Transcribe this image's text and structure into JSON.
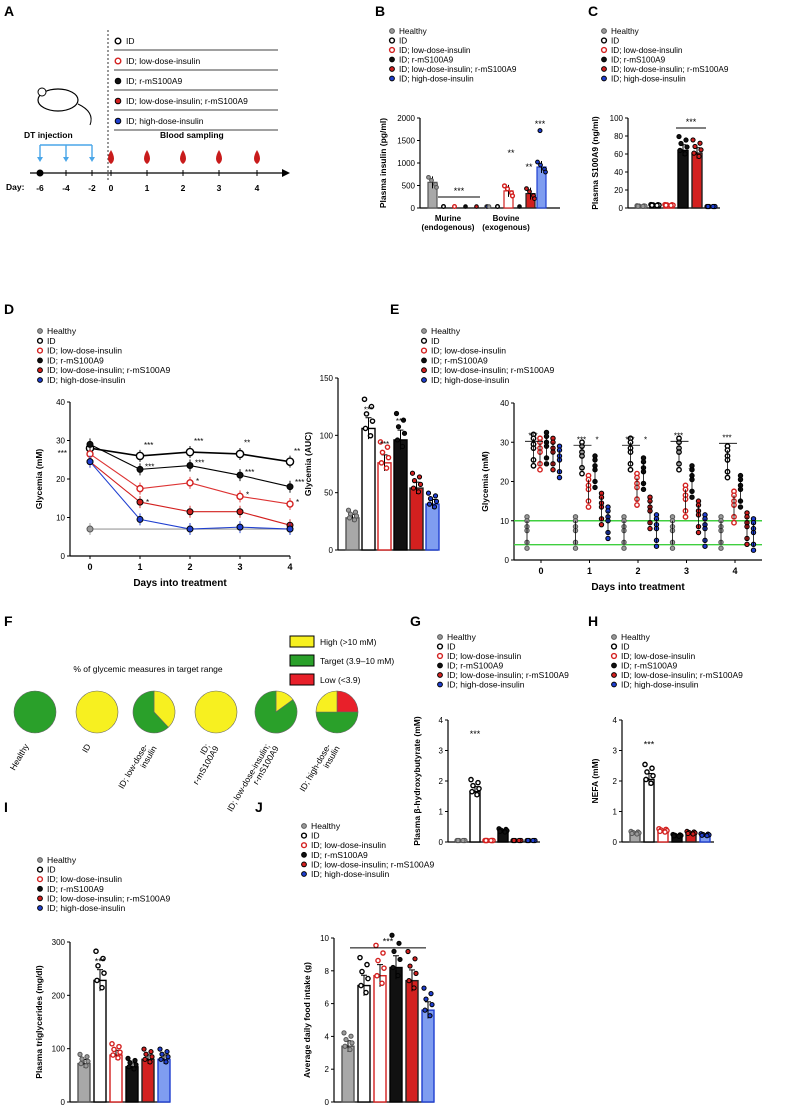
{
  "legend_groups": [
    "Healthy",
    "ID",
    "ID; low-dose-insulin",
    "ID; r-mS100A9",
    "ID; low-dose-insulin; r-mS100A9",
    "ID; high-dose-insulin"
  ],
  "colors": {
    "healthy": "#9a9a9a",
    "id": "#ffffff",
    "low": "#ffffff",
    "r": "#111111",
    "lowr": "#d3201f",
    "high": "#1f3fd0",
    "cyan": "#4aa6e8",
    "blood": "#c81b1b",
    "green_line": "#3fcf3f",
    "high_pie": "#f7f020",
    "target_pie": "#2aa02a",
    "low_pie": "#e8202a",
    "bar_low_fill": "#ffffff",
    "bar_high_fill": "#7f9df0"
  },
  "panel_letters": [
    "A",
    "B",
    "C",
    "D",
    "E",
    "F",
    "G",
    "H",
    "I",
    "J"
  ],
  "panelA": {
    "legend": [
      "ID",
      "ID; low-dose-insulin",
      "ID; r-mS100A9",
      "ID; low-dose-insulin; r-mS100A9",
      "ID; high-dose-insulin"
    ],
    "dt_label": "DT injection",
    "blood_label": "Blood sampling",
    "day_label": "Day:",
    "days": [
      "-6",
      "-4",
      "-2",
      "0",
      "1",
      "2",
      "3",
      "4"
    ]
  },
  "stars": {
    "s1": "*",
    "s2": "**",
    "s3": "***"
  },
  "chart_data": [
    {
      "panel": "B",
      "type": "bar",
      "ylabel": "Plasma insulin (pg/ml)",
      "ylim": [
        0,
        2000
      ],
      "yticks": [
        "0",
        "500",
        "1000",
        "1500",
        "2000"
      ],
      "categories": [
        "Murine\n(endogenous)",
        "Bovine\n(exogenous)"
      ],
      "series": [
        {
          "name": "Healthy",
          "values": [
            570,
            0
          ]
        },
        {
          "name": "ID",
          "values": [
            10,
            10
          ]
        },
        {
          "name": "ID; low-dose-insulin",
          "values": [
            10,
            380
          ]
        },
        {
          "name": "ID; r-mS100A9",
          "values": [
            10,
            10
          ]
        },
        {
          "name": "ID; low-dose-insulin; r-mS100A9",
          "values": [
            10,
            320
          ]
        },
        {
          "name": "ID; high-dose-insulin",
          "values": [
            10,
            910
          ]
        }
      ],
      "annotations": [
        "***",
        "**",
        "**",
        "***"
      ]
    },
    {
      "panel": "C",
      "type": "bar",
      "ylabel": "Plasma S100A9 (ng/ml)",
      "ylim": [
        0,
        100
      ],
      "yticks": [
        "0",
        "20",
        "40",
        "60",
        "80",
        "100"
      ],
      "series": [
        {
          "name": "Healthy",
          "values": [
            2
          ]
        },
        {
          "name": "ID",
          "values": [
            3
          ]
        },
        {
          "name": "ID; low-dose-insulin",
          "values": [
            3
          ]
        },
        {
          "name": "ID; r-mS100A9",
          "values": [
            64
          ]
        },
        {
          "name": "ID; low-dose-insulin; r-mS100A9",
          "values": [
            61
          ]
        },
        {
          "name": "ID; high-dose-insulin",
          "values": [
            1
          ]
        }
      ],
      "annotations": [
        "***"
      ]
    },
    {
      "panel": "D-left",
      "type": "line",
      "xlabel": "Days into treatment",
      "ylabel": "Glycemia (mM)",
      "ylim": [
        0,
        40
      ],
      "yticks": [
        "0",
        "10",
        "20",
        "30",
        "40"
      ],
      "x": [
        0,
        1,
        2,
        3,
        4
      ],
      "xticks": [
        "0",
        "1",
        "2",
        "3",
        "4"
      ],
      "series": [
        {
          "name": "Healthy",
          "values": [
            7,
            null,
            null,
            null,
            null
          ]
        },
        {
          "name": "ID",
          "values": [
            28,
            26,
            27,
            26.5,
            24.5
          ]
        },
        {
          "name": "ID; low-dose-insulin",
          "values": [
            26.5,
            17.5,
            19,
            15.5,
            13.5
          ]
        },
        {
          "name": "ID; r-mS100A9",
          "values": [
            29,
            22.5,
            23.5,
            21,
            18
          ]
        },
        {
          "name": "ID; low-dose-insulin; r-mS100A9",
          "values": [
            24.5,
            14,
            11.5,
            11.5,
            8
          ]
        },
        {
          "name": "ID; high-dose-insulin",
          "values": [
            24.5,
            9.5,
            7,
            7.5,
            7
          ]
        }
      ]
    },
    {
      "panel": "D-right",
      "type": "bar",
      "ylabel": "Glycemia (AUC)",
      "ylim": [
        0,
        150
      ],
      "yticks": [
        "0",
        "50",
        "100",
        "150"
      ],
      "series": [
        {
          "name": "Healthy",
          "values": [
            28
          ]
        },
        {
          "name": "ID",
          "values": [
            106
          ]
        },
        {
          "name": "ID; low-dose-insulin",
          "values": [
            76
          ]
        },
        {
          "name": "ID; r-mS100A9",
          "values": [
            96
          ]
        },
        {
          "name": "ID; low-dose-insulin; r-mS100A9",
          "values": [
            54
          ]
        },
        {
          "name": "ID; high-dose-insulin",
          "values": [
            40
          ]
        }
      ]
    },
    {
      "panel": "E",
      "type": "scatter",
      "xlabel": "Days into treatment",
      "ylabel": "Glycemia (mM)",
      "ylim": [
        0,
        40
      ],
      "yticks": [
        "0",
        "10",
        "20",
        "30",
        "40"
      ],
      "xticks": [
        "0",
        "1",
        "2",
        "3",
        "4"
      ],
      "reference_lines": [
        3.9,
        10
      ]
    },
    {
      "panel": "F",
      "type": "pie",
      "title": "% of glycemic measures in target range",
      "legend": [
        "High (>10 mM)",
        "Target (3.9–10 mM)",
        "Low (<3.9)"
      ],
      "pies": [
        {
          "label": "Healthy",
          "high": 0,
          "target": 100,
          "low": 0
        },
        {
          "label": "ID",
          "high": 100,
          "target": 0,
          "low": 0
        },
        {
          "label": "ID; low-dose-\ninsulin",
          "high": 38,
          "target": 62,
          "low": 0
        },
        {
          "label": "ID;\nr-mS100A9",
          "high": 100,
          "target": 0,
          "low": 0
        },
        {
          "label": "ID; low-dose-insulin;\nr-mS100A9",
          "high": 15,
          "target": 85,
          "low": 0
        },
        {
          "label": "ID; high-dose-\ninsulin",
          "high": 25,
          "target": 50,
          "low": 25
        }
      ]
    },
    {
      "panel": "G",
      "type": "bar",
      "ylabel": "Plasma β-hydroxybutyrate (mM)",
      "ylim": [
        0,
        4
      ],
      "yticks": [
        "0",
        "1",
        "2",
        "3",
        "4"
      ],
      "series": [
        {
          "name": "Healthy",
          "values": [
            0.02
          ]
        },
        {
          "name": "ID",
          "values": [
            1.65
          ]
        },
        {
          "name": "ID; low-dose-insulin",
          "values": [
            0.03
          ]
        },
        {
          "name": "ID; r-mS100A9",
          "values": [
            0.35
          ]
        },
        {
          "name": "ID; low-dose-insulin; r-mS100A9",
          "values": [
            0.03
          ]
        },
        {
          "name": "ID; high-dose-insulin",
          "values": [
            0.03
          ]
        }
      ],
      "annotations": [
        "***"
      ]
    },
    {
      "panel": "H",
      "type": "bar",
      "ylabel": "NEFA (mM)",
      "ylim": [
        0,
        4
      ],
      "yticks": [
        "0",
        "1",
        "2",
        "3",
        "4"
      ],
      "series": [
        {
          "name": "Healthy",
          "values": [
            0.28
          ]
        },
        {
          "name": "ID",
          "values": [
            2.05
          ]
        },
        {
          "name": "ID; low-dose-insulin",
          "values": [
            0.35
          ]
        },
        {
          "name": "ID; r-mS100A9",
          "values": [
            0.2
          ]
        },
        {
          "name": "ID; low-dose-insulin; r-mS100A9",
          "values": [
            0.28
          ]
        },
        {
          "name": "ID; high-dose-insulin",
          "values": [
            0.22
          ]
        }
      ],
      "annotations": [
        "***"
      ]
    },
    {
      "panel": "I",
      "type": "bar",
      "ylabel": "Plasma triglycerides (mg/dl)",
      "ylim": [
        0,
        300
      ],
      "yticks": [
        "0",
        "100",
        "200",
        "300"
      ],
      "series": [
        {
          "name": "Healthy",
          "values": [
            72
          ]
        },
        {
          "name": "ID",
          "values": [
            228
          ]
        },
        {
          "name": "ID; low-dose-insulin",
          "values": [
            88
          ]
        },
        {
          "name": "ID; r-mS100A9",
          "values": [
            66
          ]
        },
        {
          "name": "ID; low-dose-insulin; r-mS100A9",
          "values": [
            80
          ]
        },
        {
          "name": "ID; high-dose-insulin",
          "values": [
            80
          ]
        }
      ],
      "annotations": [
        "***"
      ]
    },
    {
      "panel": "J",
      "type": "bar",
      "ylabel": "Average daily food intake (g)",
      "ylim": [
        0,
        10
      ],
      "yticks": [
        "0",
        "2",
        "4",
        "6",
        "8",
        "10"
      ],
      "series": [
        {
          "name": "Healthy",
          "values": [
            3.4
          ]
        },
        {
          "name": "ID",
          "values": [
            7.1
          ]
        },
        {
          "name": "ID; low-dose-insulin",
          "values": [
            7.7
          ]
        },
        {
          "name": "ID; r-mS100A9",
          "values": [
            8.2
          ]
        },
        {
          "name": "ID; low-dose-insulin; r-mS100A9",
          "values": [
            7.4
          ]
        },
        {
          "name": "ID; high-dose-insulin",
          "values": [
            5.6
          ]
        }
      ],
      "annotations": [
        "***"
      ]
    }
  ]
}
